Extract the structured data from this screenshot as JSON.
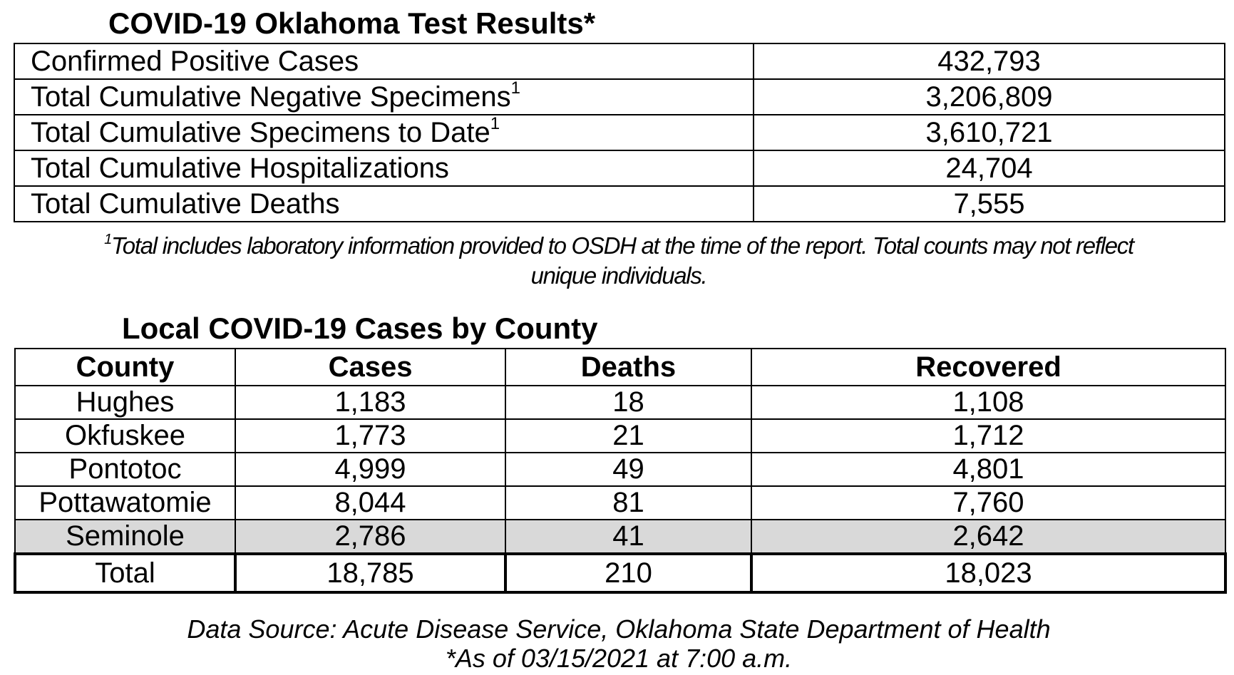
{
  "summary": {
    "title": "COVID-19 Oklahoma Test Results*",
    "rows": [
      {
        "label": "Confirmed Positive Cases",
        "sup": "",
        "value": "432,793"
      },
      {
        "label": "Total Cumulative Negative Specimens",
        "sup": "1",
        "value": "3,206,809"
      },
      {
        "label": "Total Cumulative Specimens to Date",
        "sup": "1",
        "value": "3,610,721"
      },
      {
        "label": "Total Cumulative Hospitalizations",
        "sup": "",
        "value": "24,704"
      },
      {
        "label": "Total Cumulative Deaths",
        "sup": "",
        "value": "7,555"
      }
    ],
    "footnote_mark": "1",
    "footnote_line1": "Total includes laboratory information provided to OSDH at the time of the report. Total counts may not reflect",
    "footnote_line2": "unique individuals."
  },
  "county": {
    "title": "Local COVID-19 Cases by County",
    "headers": [
      "County",
      "Cases",
      "Deaths",
      "Recovered"
    ],
    "rows": [
      [
        "Hughes",
        "1,183",
        "18",
        "1,108"
      ],
      [
        "Okfuskee",
        "1,773",
        "21",
        "1,712"
      ],
      [
        "Pontotoc",
        "4,999",
        "49",
        "4,801"
      ],
      [
        "Pottawatomie",
        "8,044",
        "81",
        "7,760"
      ],
      [
        "Seminole",
        "2,786",
        "41",
        "2,642"
      ]
    ],
    "shaded_row_color": "#d9d9d9",
    "total": [
      "Total",
      "18,785",
      "210",
      "18,023"
    ]
  },
  "source": {
    "line1": "Data Source: Acute Disease Service, Oklahoma State Department of Health",
    "line2": "*As of 03/15/2021 at 7:00 a.m."
  }
}
